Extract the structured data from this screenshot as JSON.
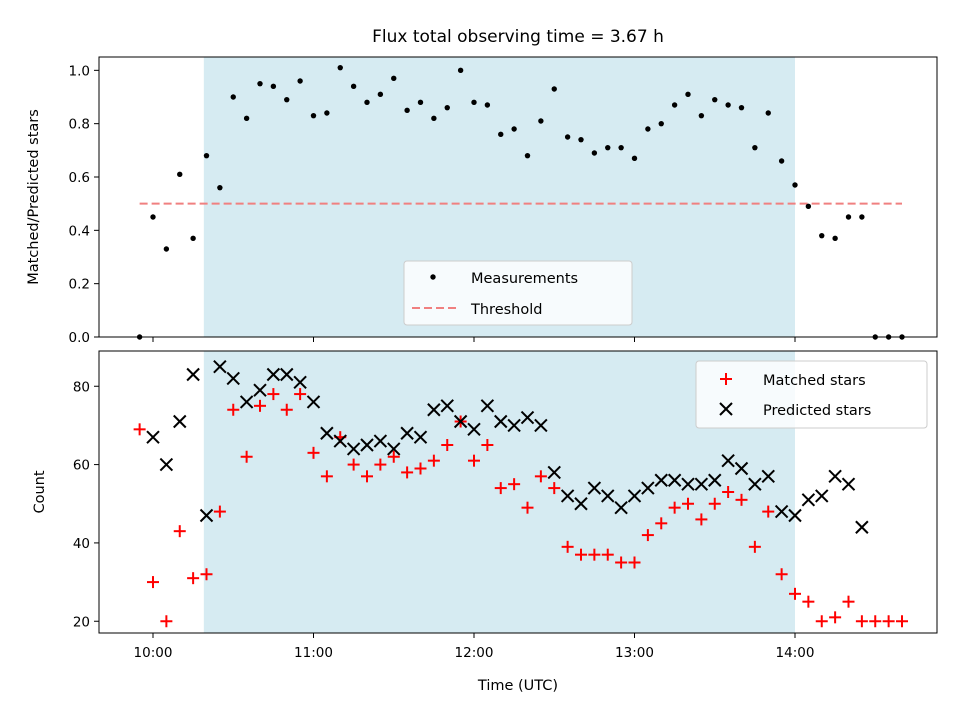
{
  "chart_data": [
    {
      "type": "scatter",
      "title": "Flux total observing time = 3.67 h",
      "xlabel": "",
      "ylabel": "Matched/Predicted stars",
      "ylim": [
        0,
        1.05
      ],
      "yticks": [
        "0.0",
        "0.2",
        "0.4",
        "0.6",
        "0.8",
        "1.0"
      ],
      "threshold": 0.5,
      "threshold_color": "#f08080",
      "observing_window": [
        "10:19",
        "14:00"
      ],
      "window_color": "#add8e6",
      "legend": {
        "position": "lower center",
        "entries": [
          "Measurements",
          "Threshold"
        ]
      },
      "series": [
        {
          "name": "Measurements",
          "color": "#000000",
          "x": [
            "09:55",
            "10:00",
            "10:05",
            "10:10",
            "10:15",
            "10:20",
            "10:25",
            "10:30",
            "10:35",
            "10:40",
            "10:45",
            "10:50",
            "10:55",
            "11:00",
            "11:05",
            "11:10",
            "11:15",
            "11:20",
            "11:25",
            "11:30",
            "11:35",
            "11:40",
            "11:45",
            "11:50",
            "11:55",
            "12:00",
            "12:05",
            "12:10",
            "12:15",
            "12:20",
            "12:25",
            "12:30",
            "12:35",
            "12:40",
            "12:45",
            "12:50",
            "12:55",
            "13:00",
            "13:05",
            "13:10",
            "13:15",
            "13:20",
            "13:25",
            "13:30",
            "13:35",
            "13:40",
            "13:45",
            "13:50",
            "13:55",
            "14:00",
            "14:05",
            "14:10",
            "14:15",
            "14:20",
            "14:25",
            "14:30",
            "14:35",
            "14:40"
          ],
          "y": [
            0.0,
            0.45,
            0.33,
            0.61,
            0.37,
            0.68,
            0.56,
            0.9,
            0.82,
            0.95,
            0.94,
            0.89,
            0.96,
            0.83,
            0.84,
            1.01,
            0.94,
            0.88,
            0.91,
            0.97,
            0.85,
            0.88,
            0.82,
            0.86,
            1.0,
            0.88,
            0.87,
            0.76,
            0.78,
            0.68,
            0.81,
            0.93,
            0.75,
            0.74,
            0.69,
            0.71,
            0.71,
            0.67,
            0.78,
            0.8,
            0.87,
            0.91,
            0.83,
            0.89,
            0.87,
            0.86,
            0.71,
            0.84,
            0.66,
            0.57,
            0.49,
            0.38,
            0.37,
            0.45,
            0.45,
            0.0,
            0.0,
            0.0
          ]
        }
      ]
    },
    {
      "type": "scatter",
      "title": "",
      "xlabel": "Time (UTC)",
      "ylabel": "Count",
      "ylim": [
        17,
        89
      ],
      "yticks": [
        "20",
        "40",
        "60",
        "80"
      ],
      "xticks": [
        "10:00",
        "11:00",
        "12:00",
        "13:00",
        "14:00"
      ],
      "observing_window": [
        "10:19",
        "14:00"
      ],
      "window_color": "#add8e6",
      "legend": {
        "position": "upper right",
        "entries": [
          "Matched stars",
          "Predicted stars"
        ]
      },
      "series": [
        {
          "name": "Matched stars",
          "marker": "+",
          "color": "#ff0000",
          "x": [
            "09:55",
            "10:00",
            "10:05",
            "10:10",
            "10:15",
            "10:20",
            "10:25",
            "10:30",
            "10:35",
            "10:40",
            "10:45",
            "10:50",
            "10:55",
            "11:00",
            "11:05",
            "11:10",
            "11:15",
            "11:20",
            "11:25",
            "11:30",
            "11:35",
            "11:40",
            "11:45",
            "11:50",
            "11:55",
            "12:00",
            "12:05",
            "12:10",
            "12:15",
            "12:20",
            "12:25",
            "12:30",
            "12:35",
            "12:40",
            "12:45",
            "12:50",
            "12:55",
            "13:00",
            "13:05",
            "13:10",
            "13:15",
            "13:20",
            "13:25",
            "13:30",
            "13:35",
            "13:40",
            "13:45",
            "13:50",
            "13:55",
            "14:00",
            "14:05",
            "14:10",
            "14:15",
            "14:20",
            "14:25",
            "14:30",
            "14:35",
            "14:40"
          ],
          "y": [
            69,
            30,
            20,
            43,
            31,
            32,
            48,
            74,
            62,
            75,
            78,
            74,
            78,
            63,
            57,
            67,
            60,
            57,
            60,
            62,
            58,
            59,
            61,
            65,
            71,
            61,
            65,
            54,
            55,
            49,
            57,
            54,
            39,
            37,
            37,
            37,
            35,
            35,
            42,
            45,
            49,
            50,
            46,
            50,
            53,
            51,
            39,
            48,
            32,
            27,
            25,
            20,
            21,
            25,
            20,
            20,
            20,
            20
          ]
        },
        {
          "name": "Predicted stars",
          "marker": "x",
          "color": "#000000",
          "x": [
            "10:00",
            "10:05",
            "10:10",
            "10:15",
            "10:20",
            "10:25",
            "10:30",
            "10:35",
            "10:40",
            "10:45",
            "10:50",
            "10:55",
            "11:00",
            "11:05",
            "11:10",
            "11:15",
            "11:20",
            "11:25",
            "11:30",
            "11:35",
            "11:40",
            "11:45",
            "11:50",
            "11:55",
            "12:00",
            "12:05",
            "12:10",
            "12:15",
            "12:20",
            "12:25",
            "12:30",
            "12:35",
            "12:40",
            "12:45",
            "12:50",
            "12:55",
            "13:00",
            "13:05",
            "13:10",
            "13:15",
            "13:20",
            "13:25",
            "13:30",
            "13:35",
            "13:40",
            "13:45",
            "13:50",
            "13:55",
            "14:00",
            "14:05",
            "14:10",
            "14:15",
            "14:20",
            "14:25"
          ],
          "y": [
            67,
            60,
            71,
            83,
            47,
            85,
            82,
            76,
            79,
            83,
            83,
            81,
            76,
            68,
            66,
            64,
            65,
            66,
            64,
            68,
            67,
            74,
            75,
            71,
            69,
            75,
            71,
            70,
            72,
            70,
            58,
            52,
            50,
            54,
            52,
            49,
            52,
            54,
            56,
            56,
            55,
            55,
            56,
            61,
            59,
            55,
            57,
            48,
            47,
            51,
            52,
            57,
            55,
            44
          ]
        }
      ]
    }
  ]
}
